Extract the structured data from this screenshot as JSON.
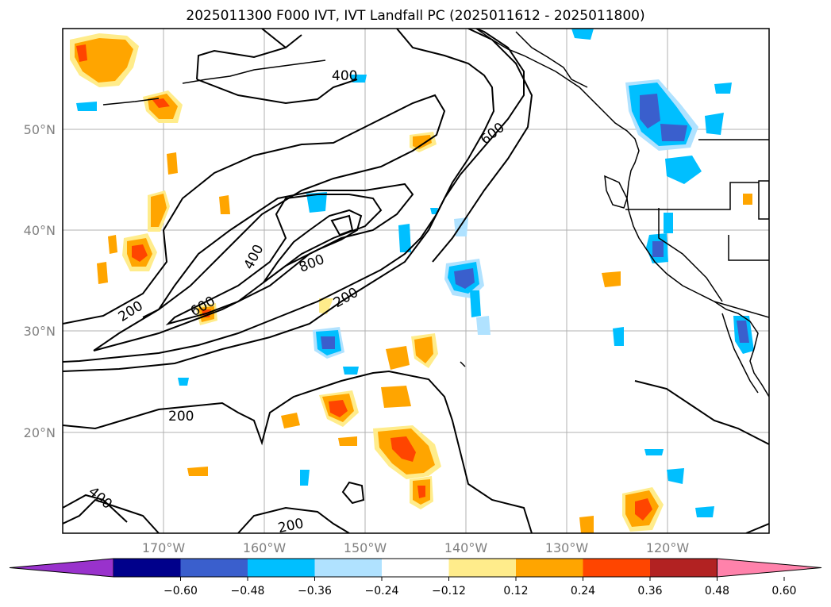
{
  "title": "2025011300 F000 IVT, IVT Landfall PC (2025011612 - 2025011800)",
  "map": {
    "lat_labels": [
      "50°N",
      "40°N",
      "30°N",
      "20°N"
    ],
    "lon_labels": [
      "170°W",
      "160°W",
      "150°W",
      "140°W",
      "130°W",
      "120°W"
    ],
    "contour_labels": [
      "400",
      "600",
      "400",
      "200",
      "600",
      "800",
      "200",
      "200",
      "400",
      "200"
    ]
  },
  "colorbar": {
    "ticks": [
      "−0.60",
      "−0.48",
      "−0.36",
      "−0.24",
      "−0.12",
      "0.12",
      "0.24",
      "0.36",
      "0.48",
      "0.60"
    ],
    "colors": [
      "#9932cc",
      "#00008b",
      "#3a5fcd",
      "#00bfff",
      "#b0e2ff",
      "#ffffff",
      "#ffec8b",
      "#ffa500",
      "#ff4500",
      "#b22222",
      "#ff82ab"
    ]
  }
}
